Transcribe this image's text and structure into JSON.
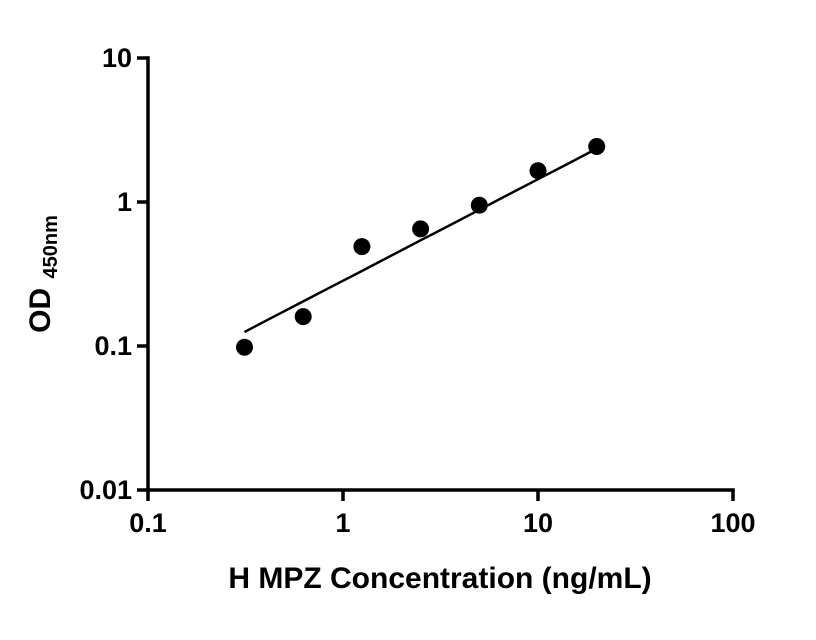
{
  "figure": {
    "background": "#ffffff"
  },
  "colors": {
    "axis": "#000000",
    "text": "#000000",
    "marker": "#000000",
    "fit_line": "#000000"
  },
  "chart_data": {
    "type": "scatter",
    "title": "",
    "xlabel": "H MPZ Concentration (ng/mL)",
    "ylabel_main": "OD",
    "ylabel_sub": "450nm",
    "x_scale": "log",
    "y_scale": "log",
    "xlim": [
      0.1,
      100
    ],
    "ylim": [
      0.01,
      10
    ],
    "x_ticks": [
      0.1,
      1,
      10,
      100
    ],
    "x_tick_labels": [
      "0.1",
      "1",
      "10",
      "100"
    ],
    "y_ticks": [
      0.01,
      0.1,
      1,
      10
    ],
    "y_tick_labels": [
      "0.01",
      "0.1",
      "1",
      "10"
    ],
    "grid": false,
    "legend": false,
    "series": [
      {
        "name": "fit-curve",
        "type": "line",
        "color": "#000000",
        "x": [
          0.3125,
          0.45,
          0.625,
          0.9,
          1.25,
          1.8,
          2.5,
          3.5,
          5,
          7,
          10,
          14,
          20
        ],
        "y": [
          0.125,
          0.162,
          0.204,
          0.264,
          0.332,
          0.43,
          0.542,
          0.686,
          0.883,
          1.12,
          1.44,
          1.82,
          2.35
        ]
      },
      {
        "name": "standard-points",
        "type": "scatter",
        "marker": "circle",
        "color": "#000000",
        "x": [
          0.3125,
          0.625,
          1.25,
          2.5,
          5,
          10,
          20
        ],
        "y": [
          0.098,
          0.16,
          0.49,
          0.65,
          0.95,
          1.65,
          2.43
        ]
      }
    ]
  }
}
